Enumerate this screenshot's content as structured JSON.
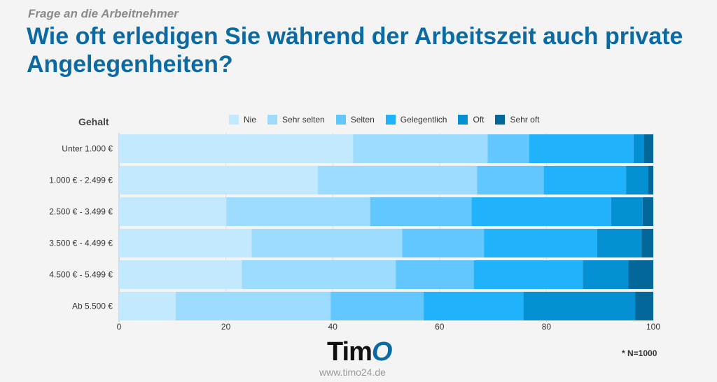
{
  "header": {
    "subtitle": "Frage an die Arbeitnehmer",
    "title": "Wie oft erledigen Sie während der Arbeitszeit auch private Angelegenheiten?"
  },
  "chart_data": {
    "type": "bar",
    "orientation": "horizontal-stacked",
    "ylabel": "Gehalt",
    "categories": [
      "Unter 1.000 €",
      "1.000 € - 2.499 €",
      "2.500 € - 3.499 €",
      "3.500 € - 4.499 €",
      "4.500 € - 5.499 €",
      "Ab 5.500 €"
    ],
    "series": [
      {
        "name": "Nie",
        "color": "#c2e9fd",
        "values": [
          43.8,
          37.2,
          20.1,
          24.8,
          23.0,
          10.6
        ]
      },
      {
        "name": "Sehr selten",
        "color": "#9edcff",
        "values": [
          25.2,
          29.8,
          26.9,
          28.2,
          28.8,
          29.0
        ]
      },
      {
        "name": "Selten",
        "color": "#62c7fe",
        "values": [
          7.8,
          12.5,
          19.0,
          15.3,
          14.6,
          17.4
        ]
      },
      {
        "name": "Gelegentlich",
        "color": "#21b2fc",
        "values": [
          19.5,
          15.4,
          26.1,
          21.2,
          20.4,
          18.7
        ]
      },
      {
        "name": "Oft",
        "color": "#0590d4",
        "values": [
          1.9,
          4.1,
          5.9,
          8.3,
          8.5,
          20.9
        ]
      },
      {
        "name": "Sehr oft",
        "color": "#046799",
        "values": [
          1.8,
          1.0,
          2.0,
          2.2,
          4.7,
          3.4
        ]
      }
    ],
    "xlim": [
      0,
      100
    ],
    "xticks": [
      "0",
      "20",
      "40",
      "60",
      "80",
      "100"
    ],
    "grid": true,
    "legend": "top"
  },
  "footer": {
    "note": "* N=1000",
    "logo": "Timo",
    "url": "www.timo24.de"
  }
}
